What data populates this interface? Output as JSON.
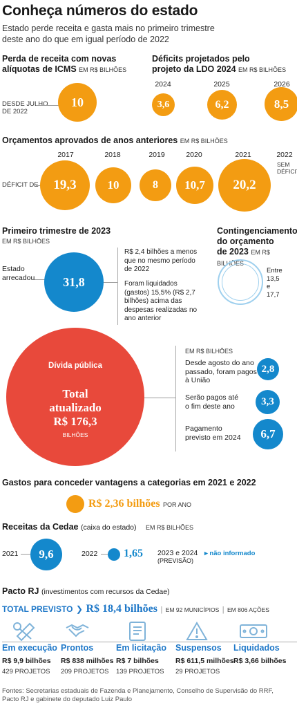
{
  "title": "Conheça números do estado",
  "subtitle": [
    "Estado perde receita e gasta mais no primeiro trimestre",
    "deste ano do que em igual período de 2022"
  ],
  "icms": {
    "title_lines": [
      "Perda de receita com novas",
      "alíquotas de ICMS"
    ],
    "unit": "EM R$ BILHÕES",
    "label_lines": [
      "DESDE JULHO",
      "DE 2022"
    ],
    "value": "10"
  },
  "deficits": {
    "title_lines": [
      "Déficits projetados pelo",
      "projeto da LDO 2024"
    ],
    "unit": "EM R$ BILHÕES",
    "items": [
      {
        "year": "2024",
        "value": "3,6"
      },
      {
        "year": "2025",
        "value": "6,2"
      },
      {
        "year": "2026",
        "value": "8,5"
      }
    ]
  },
  "budgets": {
    "title": "Orçamentos aprovados de anos anteriores",
    "unit": "EM R$ BILHÕES",
    "label": "DÉFICIT DE",
    "items": [
      {
        "year": "2017",
        "value": "19,3"
      },
      {
        "year": "2018",
        "value": "10"
      },
      {
        "year": "2019",
        "value": "8"
      },
      {
        "year": "2020",
        "value": "10,7"
      },
      {
        "year": "2021",
        "value": "20,2"
      }
    ],
    "year_2022": "2022",
    "no_deficit_lines": [
      "SEM",
      "DÉFICIT"
    ]
  },
  "q1": {
    "title": "Primeiro trimestre de 2023",
    "unit": "EM R$ BILHÕES",
    "label_lines": [
      "Estado",
      "arrecadou"
    ],
    "value": "31,8",
    "note1_lines": [
      "R$ 2,4 bilhões a menos",
      "que no mesmo período",
      "de 2022"
    ],
    "note2_lines": [
      "Foram liquidados",
      "(gastos) 15,5% (R$ 2,7",
      "bilhões) acima das",
      "despesas realizadas no",
      "ano anterior"
    ]
  },
  "contingency": {
    "title_lines": [
      "Contingenciamento",
      "do orçamento"
    ],
    "title_year": "de 2023",
    "unit": "EM R$ BILHÕES",
    "range_lines": [
      "Entre",
      "13,5",
      "e",
      "17,7"
    ]
  },
  "debt": {
    "title": "Dívida pública",
    "total_lines": [
      "Total",
      "atualizado"
    ],
    "total_value": "R$ 176,3",
    "total_unit": "BILHÕES",
    "unit": "EM R$ BILHÕES",
    "items": [
      {
        "label_lines": [
          "Desde agosto do ano",
          "passado, foram pagos",
          "à União"
        ],
        "value": "2,8"
      },
      {
        "label_lines": [
          "Serão pagos até",
          "o fim deste ano"
        ],
        "value": "3,3"
      },
      {
        "label_lines": [
          "Pagamento",
          "previsto em 2024"
        ],
        "value": "6,7"
      }
    ]
  },
  "advantages": {
    "title": "Gastos para conceder vantagens a categorias em 2021 e 2022",
    "value": "R$ 2,36 bilhões",
    "suffix": "POR ANO"
  },
  "cedae": {
    "title": "Receitas da Cedae",
    "title_note": "(caixa do estado)",
    "unit": "EM R$ BILHÕES",
    "items": [
      {
        "year": "2021",
        "value": "9,6"
      },
      {
        "year": "2022",
        "value": "1,65"
      }
    ],
    "future_lines": [
      "2023 e 2024",
      "(PREVISÃO)"
    ],
    "not_informed": "não informado"
  },
  "pacto": {
    "title": "Pacto RJ",
    "title_note": "(investimentos com recursos da Cedae)",
    "total_label": "TOTAL PREVISTO",
    "total_value": "R$ 18,4 bilhões",
    "municipalities": "EM 92 MUNICÍPIOS",
    "actions": "EM 806 AÇÕES",
    "categories": [
      {
        "title": "Em execução",
        "value": "R$ 9,9 bilhões",
        "projects": "429 PROJETOS",
        "icon": "tools-icon"
      },
      {
        "title": "Prontos",
        "value": "R$ 838 milhões",
        "projects": "209 PROJETOS",
        "icon": "handshake-icon"
      },
      {
        "title": "Em licitação",
        "value": "R$ 7 bilhões",
        "projects": "139 PROJETOS",
        "icon": "document-icon"
      },
      {
        "title": "Suspensos",
        "value": "R$ 611,5 milhões",
        "projects": "29 PROJETOS",
        "icon": "warning-icon"
      },
      {
        "title": "Liquidados",
        "value": "R$ 3,66 bilhões",
        "projects": "",
        "icon": "money-icon"
      }
    ]
  },
  "source_lines": [
    "Fontes: Secretarias estaduais de Fazenda e Planejamento, Conselho de Supervisão do RRF,",
    "Pacto RJ e gabinete do deputado Luiz Paulo"
  ],
  "colors": {
    "orange": "#f39c12",
    "blue": "#1488cc",
    "red": "#e8493b",
    "link_blue": "#1f78c8"
  }
}
